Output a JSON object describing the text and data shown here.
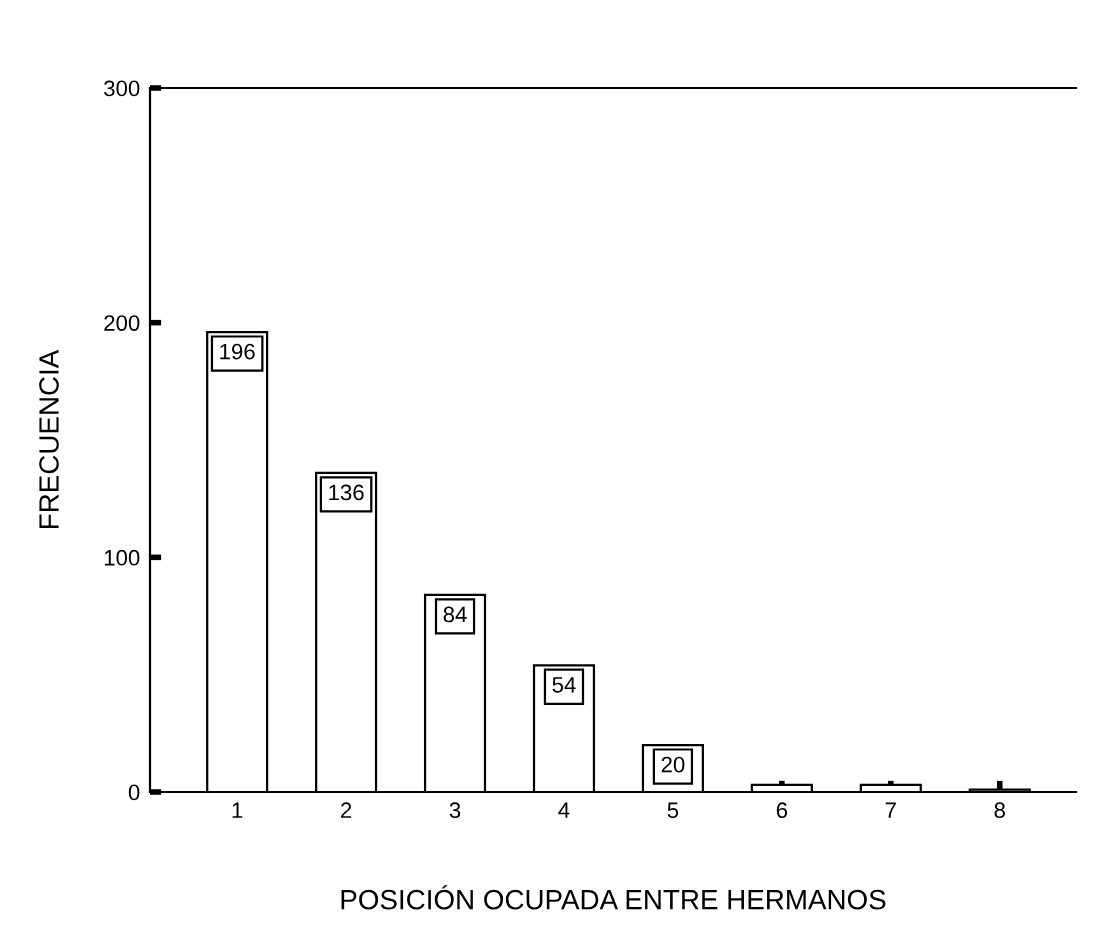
{
  "chart_data": {
    "type": "bar",
    "xlabel": "POSICIÓN OCUPADA ENTRE HERMANOS",
    "ylabel": "FRECUENCIA",
    "categories": [
      "1",
      "2",
      "3",
      "4",
      "5",
      "6",
      "7",
      "8"
    ],
    "values": [
      196,
      136,
      84,
      54,
      20,
      3,
      3,
      1
    ],
    "value_labels": [
      "196",
      "136",
      "84",
      "54",
      "20",
      null,
      null,
      null
    ],
    "color": "#ffffff",
    "ylim": [
      0,
      300
    ],
    "yticks": [
      0,
      100,
      200,
      300
    ],
    "grid": false
  }
}
